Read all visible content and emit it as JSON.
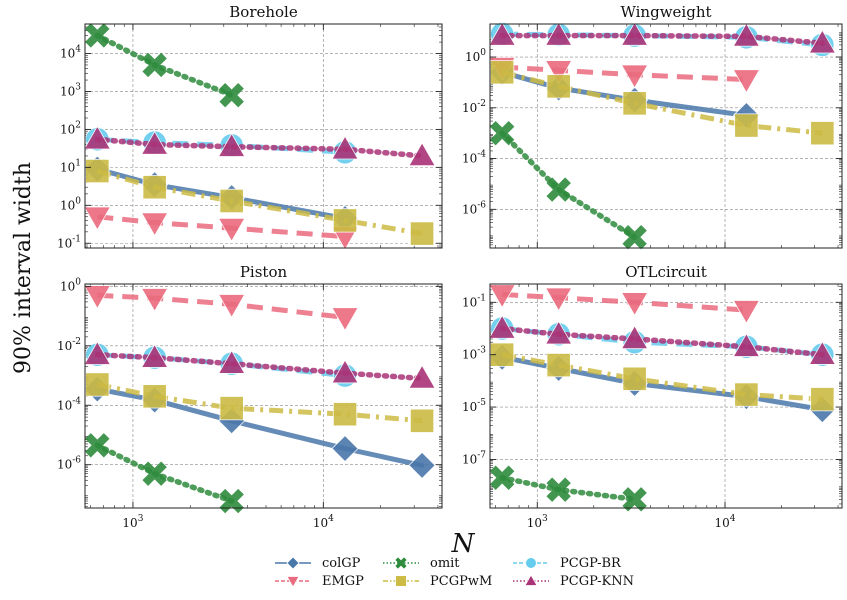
{
  "figure": {
    "ylabel": "90% interval width",
    "xlabel": "N"
  },
  "chart_data": [
    {
      "type": "line",
      "title": "Borehole",
      "xscale": "log",
      "yscale": "log",
      "xlim": [
        560,
        42000
      ],
      "ylim": [
        0.075,
        60000
      ],
      "yticks": [
        0.1,
        1,
        10,
        100,
        1000,
        10000
      ],
      "series": [
        {
          "name": "colGP",
          "x": [
            650,
            1300,
            3300,
            13000,
            33000
          ],
          "y": [
            9,
            3.5,
            1.6,
            0.45,
            null
          ]
        },
        {
          "name": "EMGP",
          "x": [
            650,
            1300,
            3300,
            13000,
            33000
          ],
          "y": [
            0.5,
            0.35,
            0.25,
            0.15,
            null
          ]
        },
        {
          "name": "omit",
          "x": [
            650,
            1300,
            3300,
            13000,
            33000
          ],
          "y": [
            30000,
            5000,
            800,
            null,
            null
          ]
        },
        {
          "name": "PCGPwM",
          "x": [
            650,
            1300,
            3300,
            13000,
            33000
          ],
          "y": [
            8,
            3,
            1.3,
            0.4,
            0.18
          ]
        },
        {
          "name": "PCGP-BR",
          "x": [
            650,
            1300,
            3300,
            13000,
            33000
          ],
          "y": [
            55,
            45,
            38,
            25,
            null
          ]
        },
        {
          "name": "PCGP-KNN",
          "x": [
            650,
            1300,
            3300,
            13000,
            33000
          ],
          "y": [
            55,
            40,
            35,
            30,
            20
          ]
        }
      ]
    },
    {
      "type": "line",
      "title": "Wingweight",
      "xscale": "log",
      "yscale": "log",
      "xlim": [
        560,
        42000
      ],
      "ylim": [
        3e-08,
        20
      ],
      "yticks": [
        1e-06,
        0.0001,
        0.01,
        1
      ],
      "series": [
        {
          "name": "colGP",
          "x": [
            650,
            1300,
            3300,
            13000,
            33000
          ],
          "y": [
            0.25,
            0.06,
            0.02,
            0.005,
            null
          ]
        },
        {
          "name": "EMGP",
          "x": [
            650,
            1300,
            3300,
            13000,
            33000
          ],
          "y": [
            0.4,
            0.3,
            0.2,
            0.13,
            null
          ]
        },
        {
          "name": "omit",
          "x": [
            650,
            1300,
            3300,
            13000,
            33000
          ],
          "y": [
            0.001,
            6e-06,
            8e-08,
            null,
            null
          ]
        },
        {
          "name": "PCGPwM",
          "x": [
            650,
            1300,
            3300,
            13000,
            33000
          ],
          "y": [
            0.25,
            0.07,
            0.015,
            0.002,
            0.001
          ]
        },
        {
          "name": "PCGP-BR",
          "x": [
            650,
            1300,
            3300,
            13000,
            33000
          ],
          "y": [
            8,
            7.5,
            7,
            6,
            3
          ]
        },
        {
          "name": "PCGP-KNN",
          "x": [
            650,
            1300,
            3300,
            13000,
            33000
          ],
          "y": [
            7,
            7,
            7,
            6.5,
            3.5
          ]
        }
      ]
    },
    {
      "type": "line",
      "title": "Piston",
      "xscale": "log",
      "yscale": "log",
      "xlim": [
        560,
        42000
      ],
      "ylim": [
        3.5e-08,
        1.2
      ],
      "yticks": [
        1e-06,
        0.0001,
        0.01,
        1
      ],
      "series": [
        {
          "name": "colGP",
          "x": [
            650,
            1300,
            3300,
            13000,
            33000
          ],
          "y": [
            0.00035,
            0.00015,
            3e-05,
            3.5e-06,
            9.5e-07
          ]
        },
        {
          "name": "EMGP",
          "x": [
            650,
            1300,
            3300,
            13000,
            33000
          ],
          "y": [
            0.5,
            0.4,
            0.25,
            0.09,
            null
          ]
        },
        {
          "name": "omit",
          "x": [
            650,
            1300,
            3300,
            13000,
            33000
          ],
          "y": [
            4.5e-06,
            5e-07,
            6e-08,
            null,
            null
          ]
        },
        {
          "name": "PCGPwM",
          "x": [
            650,
            1300,
            3300,
            13000,
            33000
          ],
          "y": [
            0.0005,
            0.0002,
            8e-05,
            5e-05,
            3e-05
          ]
        },
        {
          "name": "PCGP-BR",
          "x": [
            650,
            1300,
            3300,
            13000,
            33000
          ],
          "y": [
            0.005,
            0.004,
            0.0025,
            0.001,
            null
          ]
        },
        {
          "name": "PCGP-KNN",
          "x": [
            650,
            1300,
            3300,
            13000,
            33000
          ],
          "y": [
            0.005,
            0.004,
            0.0025,
            0.0012,
            0.0008
          ]
        }
      ]
    },
    {
      "type": "line",
      "title": "OTLcircuit",
      "xscale": "log",
      "yscale": "log",
      "xlim": [
        560,
        42000
      ],
      "ylim": [
        1.4e-09,
        0.5
      ],
      "yticks": [
        1e-07,
        1e-05,
        0.001,
        0.1
      ],
      "series": [
        {
          "name": "colGP",
          "x": [
            650,
            1300,
            3300,
            13000,
            33000
          ],
          "y": [
            0.0008,
            0.0003,
            8e-05,
            2.5e-05,
            8e-06
          ]
        },
        {
          "name": "EMGP",
          "x": [
            650,
            1300,
            3300,
            13000,
            33000
          ],
          "y": [
            0.2,
            0.15,
            0.1,
            0.05,
            null
          ]
        },
        {
          "name": "omit",
          "x": [
            650,
            1300,
            3300,
            13000,
            33000
          ],
          "y": [
            2e-08,
            7e-09,
            3e-09,
            null,
            null
          ]
        },
        {
          "name": "PCGPwM",
          "x": [
            650,
            1300,
            3300,
            13000,
            33000
          ],
          "y": [
            0.001,
            0.0004,
            0.00012,
            3e-05,
            2e-05
          ]
        },
        {
          "name": "PCGP-BR",
          "x": [
            650,
            1300,
            3300,
            13000,
            33000
          ],
          "y": [
            0.01,
            0.006,
            0.003,
            0.002,
            0.001
          ]
        },
        {
          "name": "PCGP-KNN",
          "x": [
            650,
            1300,
            3300,
            13000,
            33000
          ],
          "y": [
            0.01,
            0.006,
            0.004,
            0.002,
            0.001
          ]
        }
      ]
    }
  ],
  "legend": {
    "placement": "bottom",
    "entries": [
      {
        "name": "colGP",
        "color": "#4a77aa",
        "marker": "diamond",
        "dash": "solid"
      },
      {
        "name": "EMGP",
        "color": "#ea6a7e",
        "marker": "triangle-down",
        "dash": "dashed"
      },
      {
        "name": "omit",
        "color": "#2e8b3c",
        "marker": "x",
        "dash": "dotted"
      },
      {
        "name": "PCGPwM",
        "color": "#ccbb44",
        "marker": "square",
        "dash": "dashdot"
      },
      {
        "name": "PCGP-BR",
        "color": "#66ccee",
        "marker": "circle",
        "dash": "dashed"
      },
      {
        "name": "PCGP-KNN",
        "color": "#aa3377",
        "marker": "triangle-up",
        "dash": "dotted"
      }
    ]
  }
}
